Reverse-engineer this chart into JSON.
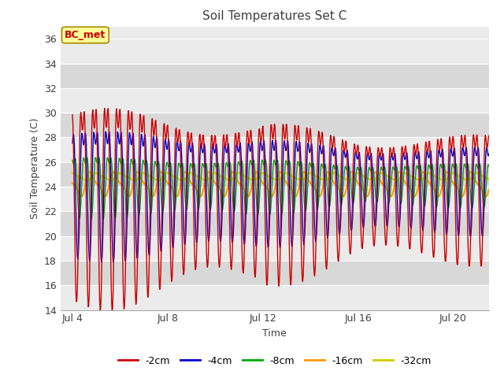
{
  "title": "Soil Temperatures Set C",
  "xlabel": "Time",
  "ylabel": "Soil Temperature (C)",
  "ylim": [
    14,
    37
  ],
  "yticks": [
    14,
    16,
    18,
    20,
    22,
    24,
    26,
    28,
    30,
    32,
    34,
    36
  ],
  "xtick_labels": [
    "Jul 4",
    "Jul 8",
    "Jul 12",
    "Jul 16",
    "Jul 20"
  ],
  "xtick_positions": [
    4,
    8,
    12,
    16,
    20
  ],
  "xlim": [
    3.5,
    21.5
  ],
  "colors": {
    "-2cm": "#cc0000",
    "-4cm": "#0000cc",
    "-8cm": "#00aa00",
    "-16cm": "#ff9900",
    "-32cm": "#cccc00"
  },
  "annotation_text": "BC_met",
  "annotation_color": "#cc0000",
  "annotation_bg": "#ffff99",
  "annotation_border": "#aa8800",
  "plot_bg_light": "#ebebeb",
  "plot_bg_dark": "#d8d8d8",
  "grid_color": "#ffffff",
  "title_color": "#404040",
  "label_color": "#404040",
  "legend_entries": [
    "-2cm",
    "-4cm",
    "-8cm",
    "-16cm",
    "-32cm"
  ]
}
